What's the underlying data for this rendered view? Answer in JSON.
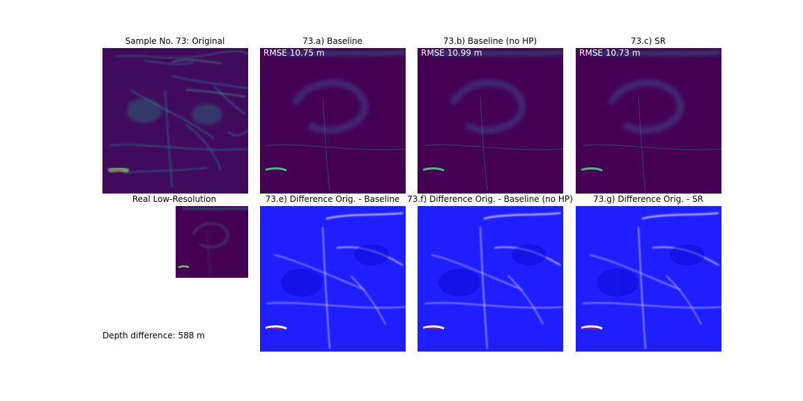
{
  "figure": {
    "panels": [
      {
        "id": "orig",
        "title": "Sample No. 73: Original",
        "kind": "height"
      },
      {
        "id": "a",
        "title": "73.a) Baseline",
        "rmse": "RMSE 10.75 m",
        "kind": "height-smooth"
      },
      {
        "id": "b",
        "title": "73.b) Baseline (no HP)",
        "rmse": "RMSE 10.99 m",
        "kind": "height-smooth"
      },
      {
        "id": "c",
        "title": "73.c) SR",
        "rmse": "RMSE 10.73 m",
        "kind": "height-smooth"
      },
      {
        "id": "lr",
        "title": "Real Low-Resolution",
        "kind": "height-smooth"
      },
      {
        "id": "e",
        "title": "73.e) Difference Orig. - Baseline",
        "kind": "difference"
      },
      {
        "id": "f",
        "title": "73.f) Difference Orig. - Baseline (no HP)",
        "kind": "difference"
      },
      {
        "id": "g",
        "title": "73.g) Difference Orig. - SR",
        "kind": "difference"
      }
    ],
    "depth_difference": "Depth difference: 588 m",
    "colors": {
      "viridis_dark": "#440154",
      "viridis_mid": "#21918c",
      "viridis_bright": "#fde725",
      "diff_base": "#1e1eff",
      "diff_white": "#ffffff",
      "diff_red": "#e01010"
    }
  }
}
